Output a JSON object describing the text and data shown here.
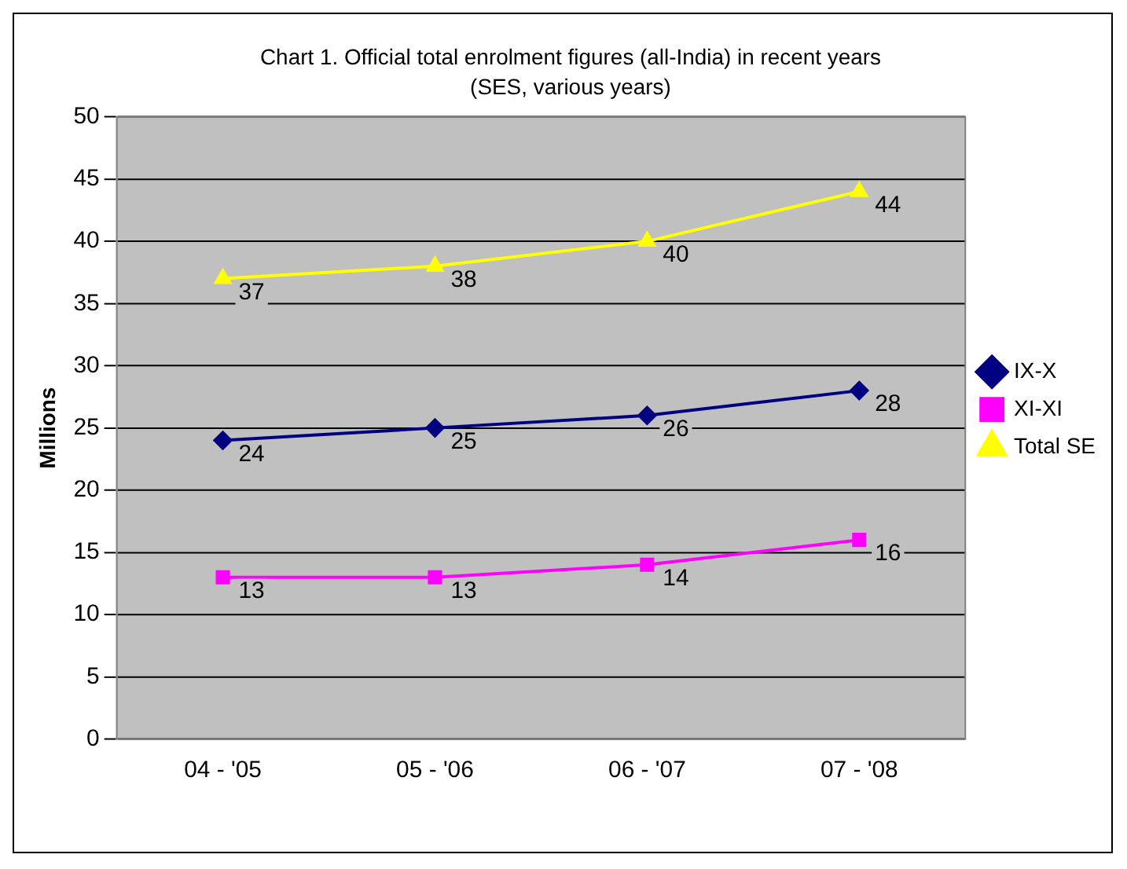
{
  "chart_data": {
    "type": "line",
    "title": "Chart 1. Official total enrolment figures (all-India) in recent years",
    "subtitle": "(SES, various years)",
    "ylabel": "Millions",
    "categories": [
      "04 - '05",
      "05 - '06",
      "06 - '07",
      "07 - '08"
    ],
    "series": [
      {
        "name": "IX-X",
        "color": "#000080",
        "marker": "diamond",
        "values": [
          24,
          25,
          26,
          28
        ]
      },
      {
        "name": "XI-XI",
        "color": "#ff00ff",
        "marker": "square",
        "values": [
          13,
          13,
          14,
          16
        ]
      },
      {
        "name": "Total SE",
        "color": "#ffff00",
        "marker": "triangle",
        "values": [
          37,
          38,
          40,
          44
        ]
      }
    ],
    "ylim": [
      0,
      50
    ],
    "yticks": [
      0,
      5,
      10,
      15,
      20,
      25,
      30,
      35,
      40,
      45,
      50
    ],
    "grid": "y",
    "legend": "right",
    "data_labels": true
  }
}
